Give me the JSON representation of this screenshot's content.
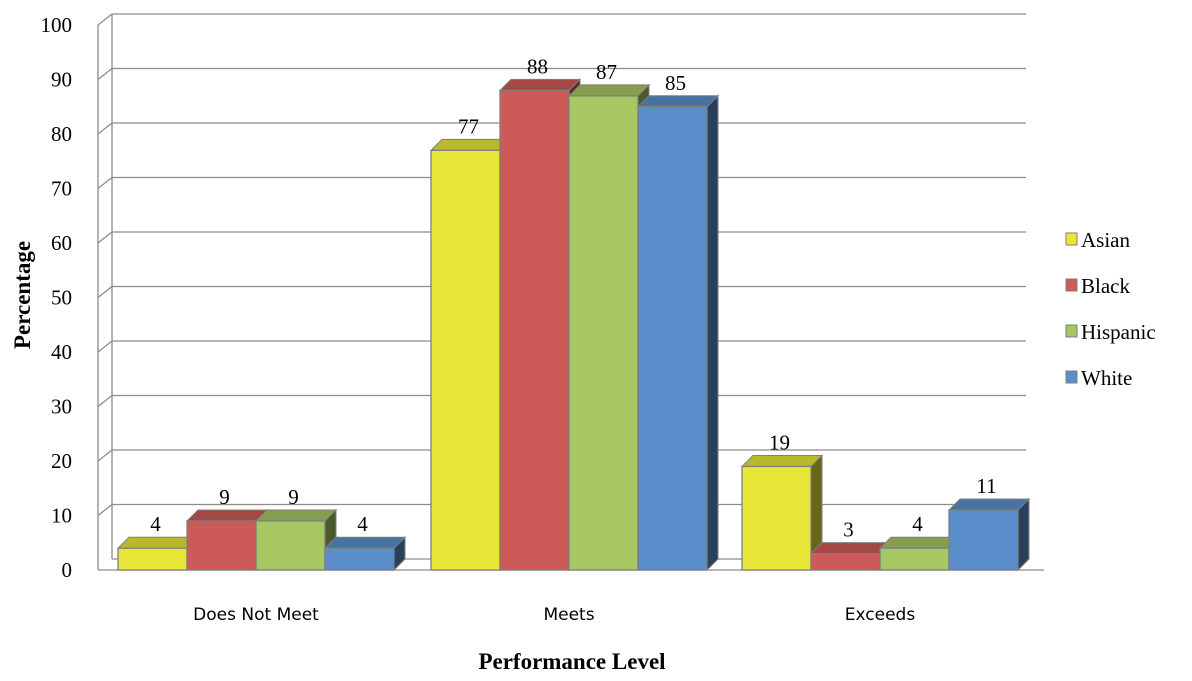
{
  "chart_data": {
    "type": "bar",
    "categories": [
      "Does Not Meet",
      "Meets",
      "Exceeds"
    ],
    "series": [
      {
        "name": "Asian",
        "color": "#e8e637",
        "values": [
          4,
          77,
          19
        ]
      },
      {
        "name": "Black",
        "color": "#cd5a57",
        "values": [
          9,
          88,
          3
        ]
      },
      {
        "name": "Hispanic",
        "color": "#a6c762",
        "values": [
          9,
          87,
          4
        ]
      },
      {
        "name": "White",
        "color": "#5a8ecb",
        "values": [
          4,
          85,
          11
        ]
      }
    ],
    "xlabel": "Performance Level",
    "ylabel": "Percentage",
    "ylim": [
      0,
      100
    ],
    "yticks": [
      "0",
      "10",
      "20",
      "30",
      "40",
      "50",
      "60",
      "70",
      "80",
      "90",
      "100"
    ],
    "grid": true,
    "legend_position": "right",
    "style": "3d-column"
  }
}
